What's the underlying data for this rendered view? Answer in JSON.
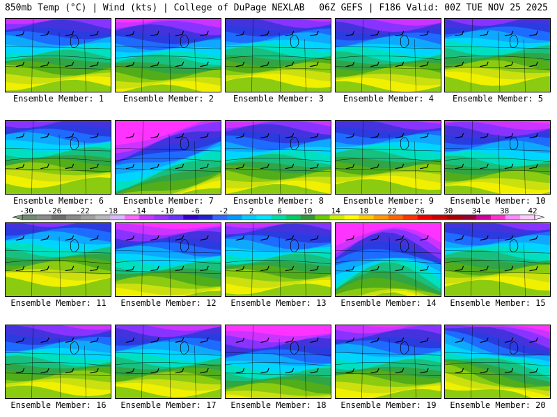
{
  "header": {
    "left": "850mb Temp (°C) | Wind (kts) | College of DuPage NEXLAB",
    "right": "06Z GEFS | F186 Valid: 00Z TUE NOV 25 2025"
  },
  "chart_data": {
    "type": "heatmap",
    "title": "850mb Temp (°C) | Wind (kts)",
    "model": "06Z GEFS",
    "forecast_hour": "F186",
    "valid": "00Z TUE NOV 25 2025",
    "colorbar": {
      "ticks": [
        "-30",
        "-26",
        "-22",
        "-18",
        "-14",
        "-10",
        "-6",
        "-2",
        "2",
        "6",
        "10",
        "14",
        "18",
        "22",
        "26",
        "30",
        "34",
        "38",
        "42"
      ],
      "colors": [
        "#6f8a6f",
        "#8a8a8a",
        "#6e6e6e",
        "#8a8a8a",
        "#a0a0a0",
        "#b8b8b8",
        "#d8b8ff",
        "#ff66ff",
        "#cc33ff",
        "#9933ff",
        "#6633ff",
        "#3300cc",
        "#2222cc",
        "#3366ff",
        "#0099ff",
        "#00ccff",
        "#00e5ff",
        "#00ddaa",
        "#00cc66",
        "#339933",
        "#66cc00",
        "#ccee00",
        "#ffff00",
        "#ffcc00",
        "#ff9900",
        "#ff6600",
        "#ff3300",
        "#ee0000",
        "#cc0000",
        "#aa0000",
        "#990033",
        "#cc0099",
        "#ff33cc",
        "#ff88ff",
        "#ffccff"
      ]
    },
    "panels": [
      {
        "label": "Ensemble Member: 1",
        "cold": 0.3,
        "warm": 0.75,
        "tilt": 0
      },
      {
        "label": "Ensemble Member: 2",
        "cold": 0.45,
        "warm": 0.7,
        "tilt": 0
      },
      {
        "label": "Ensemble Member: 3",
        "cold": 0.25,
        "warm": 0.85,
        "tilt": 0
      },
      {
        "label": "Ensemble Member: 4",
        "cold": 0.35,
        "warm": 0.75,
        "tilt": 0
      },
      {
        "label": "Ensemble Member: 5",
        "cold": 0.15,
        "warm": 0.8,
        "tilt": 0
      },
      {
        "label": "Ensemble Member: 6",
        "cold": 0.15,
        "warm": 0.8,
        "tilt": 0
      },
      {
        "label": "Ensemble Member: 7",
        "cold": 0.6,
        "warm": 0.2,
        "tilt": 1
      },
      {
        "label": "Ensemble Member: 8",
        "cold": 0.4,
        "warm": 0.8,
        "tilt": 0
      },
      {
        "label": "Ensemble Member: 9",
        "cold": 0.15,
        "warm": 0.65,
        "tilt": 0
      },
      {
        "label": "Ensemble Member: 10",
        "cold": 0.25,
        "warm": 0.35,
        "tilt": 0
      },
      {
        "label": "Ensemble Member: 11",
        "cold": 0.1,
        "warm": 0.95,
        "tilt": 0
      },
      {
        "label": "Ensemble Member: 12",
        "cold": 0.55,
        "warm": 0.75,
        "tilt": 0
      },
      {
        "label": "Ensemble Member: 13",
        "cold": 0.35,
        "warm": 0.9,
        "tilt": 0
      },
      {
        "label": "Ensemble Member: 14",
        "cold": 0.7,
        "warm": 0.15,
        "tilt": 2
      },
      {
        "label": "Ensemble Member: 15",
        "cold": 0.05,
        "warm": 0.55,
        "tilt": 0
      },
      {
        "label": "Ensemble Member: 16",
        "cold": 0.2,
        "warm": 0.6,
        "tilt": 0
      },
      {
        "label": "Ensemble Member: 17",
        "cold": 0.35,
        "warm": 0.85,
        "tilt": 0
      },
      {
        "label": "Ensemble Member: 18",
        "cold": 0.55,
        "warm": 0.35,
        "tilt": 0
      },
      {
        "label": "Ensemble Member: 19",
        "cold": 0.4,
        "warm": 0.75,
        "tilt": 0
      },
      {
        "label": "Ensemble Member: 20",
        "cold": 0.2,
        "warm": 0.35,
        "tilt": 3
      }
    ]
  }
}
